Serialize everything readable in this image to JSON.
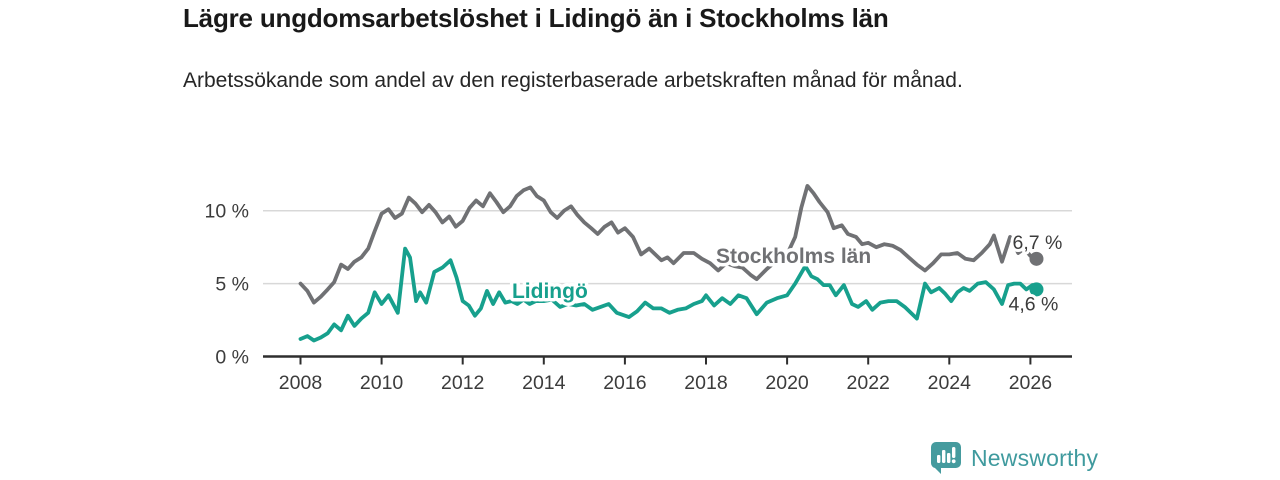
{
  "header": {
    "title": "Lägre ungdomsarbetslöshet i Lidingö än i Stockholms län",
    "subtitle": "Arbetssökande som andel av den registerbaserade arbetskraften månad för månad."
  },
  "footer": {
    "brand": "Newsworthy",
    "logo_icon": "newsworthy-speech-bubble-bar-chart-icon"
  },
  "colors": {
    "stockholm_line": "#707174",
    "lidingo_line": "#17a08d",
    "gridline": "#d8d8d8",
    "axis": "#2e2e2e",
    "tick_label": "#3c3c3c",
    "value_label": "#3c3c3c",
    "brand_teal": "#459b9e"
  },
  "chart_data": {
    "type": "line",
    "title": "Lägre ungdomsarbetslöshet i Lidingö än i Stockholms län",
    "xlabel": "",
    "ylabel": "",
    "grid": "horizontal",
    "legend_position": "inline-labels",
    "xlim": [
      2007.1,
      2027.05
    ],
    "ylim": [
      0,
      12.3
    ],
    "x_ticks": [
      2008,
      2010,
      2012,
      2014,
      2016,
      2018,
      2020,
      2022,
      2024,
      2026
    ],
    "y_ticks": [
      {
        "value": 0,
        "label": "0 %"
      },
      {
        "value": 5,
        "label": "5 %"
      },
      {
        "value": 10,
        "label": "10 %"
      }
    ],
    "series": [
      {
        "name": "Stockholms län",
        "color": "#707174",
        "end_label": "6,7 %",
        "end_value": 6.7,
        "end_label_side": "above",
        "label_pos": {
          "x": 2020.16,
          "y": 6.88
        },
        "points": [
          [
            2008.0,
            5.0
          ],
          [
            2008.17,
            4.5
          ],
          [
            2008.33,
            3.7
          ],
          [
            2008.5,
            4.1
          ],
          [
            2008.67,
            4.6
          ],
          [
            2008.83,
            5.1
          ],
          [
            2009.0,
            6.3
          ],
          [
            2009.17,
            6.0
          ],
          [
            2009.33,
            6.5
          ],
          [
            2009.5,
            6.8
          ],
          [
            2009.67,
            7.4
          ],
          [
            2009.83,
            8.6
          ],
          [
            2010.0,
            9.8
          ],
          [
            2010.17,
            10.1
          ],
          [
            2010.33,
            9.5
          ],
          [
            2010.5,
            9.8
          ],
          [
            2010.67,
            10.9
          ],
          [
            2010.83,
            10.5
          ],
          [
            2011.0,
            9.9
          ],
          [
            2011.17,
            10.4
          ],
          [
            2011.33,
            9.9
          ],
          [
            2011.5,
            9.2
          ],
          [
            2011.67,
            9.6
          ],
          [
            2011.83,
            8.9
          ],
          [
            2012.0,
            9.3
          ],
          [
            2012.17,
            10.2
          ],
          [
            2012.33,
            10.7
          ],
          [
            2012.5,
            10.3
          ],
          [
            2012.67,
            11.2
          ],
          [
            2012.83,
            10.6
          ],
          [
            2013.0,
            9.9
          ],
          [
            2013.17,
            10.3
          ],
          [
            2013.33,
            11.0
          ],
          [
            2013.5,
            11.4
          ],
          [
            2013.67,
            11.6
          ],
          [
            2013.83,
            11.0
          ],
          [
            2014.0,
            10.7
          ],
          [
            2014.17,
            9.9
          ],
          [
            2014.33,
            9.5
          ],
          [
            2014.5,
            10.0
          ],
          [
            2014.67,
            10.3
          ],
          [
            2014.83,
            9.7
          ],
          [
            2015.0,
            9.2
          ],
          [
            2015.17,
            8.8
          ],
          [
            2015.33,
            8.4
          ],
          [
            2015.5,
            8.9
          ],
          [
            2015.67,
            9.2
          ],
          [
            2015.83,
            8.5
          ],
          [
            2016.0,
            8.8
          ],
          [
            2016.2,
            8.2
          ],
          [
            2016.4,
            7.0
          ],
          [
            2016.6,
            7.4
          ],
          [
            2016.9,
            6.6
          ],
          [
            2017.05,
            6.8
          ],
          [
            2017.2,
            6.4
          ],
          [
            2017.45,
            7.1
          ],
          [
            2017.7,
            7.1
          ],
          [
            2017.9,
            6.7
          ],
          [
            2018.1,
            6.4
          ],
          [
            2018.3,
            5.9
          ],
          [
            2018.5,
            6.4
          ],
          [
            2018.7,
            6.2
          ],
          [
            2018.9,
            6.1
          ],
          [
            2019.1,
            5.6
          ],
          [
            2019.25,
            5.3
          ],
          [
            2019.5,
            6.0
          ],
          [
            2019.75,
            6.6
          ],
          [
            2020.0,
            7.0
          ],
          [
            2020.2,
            8.2
          ],
          [
            2020.35,
            10.2
          ],
          [
            2020.5,
            11.7
          ],
          [
            2020.65,
            11.2
          ],
          [
            2020.8,
            10.6
          ],
          [
            2021.0,
            9.9
          ],
          [
            2021.15,
            8.8
          ],
          [
            2021.35,
            9.0
          ],
          [
            2021.5,
            8.4
          ],
          [
            2021.7,
            8.2
          ],
          [
            2021.85,
            7.7
          ],
          [
            2022.0,
            7.8
          ],
          [
            2022.2,
            7.5
          ],
          [
            2022.4,
            7.7
          ],
          [
            2022.6,
            7.6
          ],
          [
            2022.8,
            7.3
          ],
          [
            2023.0,
            6.8
          ],
          [
            2023.2,
            6.3
          ],
          [
            2023.4,
            5.9
          ],
          [
            2023.6,
            6.4
          ],
          [
            2023.8,
            7.0
          ],
          [
            2024.0,
            7.0
          ],
          [
            2024.2,
            7.1
          ],
          [
            2024.4,
            6.7
          ],
          [
            2024.6,
            6.6
          ],
          [
            2024.8,
            7.1
          ],
          [
            2025.0,
            7.7
          ],
          [
            2025.1,
            8.3
          ],
          [
            2025.3,
            6.5
          ],
          [
            2025.5,
            8.2
          ],
          [
            2025.7,
            7.1
          ],
          [
            2025.85,
            7.4
          ],
          [
            2026.0,
            6.9
          ],
          [
            2026.15,
            6.7
          ]
        ]
      },
      {
        "name": "Lidingö",
        "color": "#17a08d",
        "end_label": "4,6 %",
        "end_value": 4.6,
        "end_label_side": "below",
        "label_pos": {
          "x": 2014.15,
          "y": 4.49
        },
        "points": [
          [
            2008.0,
            1.2
          ],
          [
            2008.17,
            1.4
          ],
          [
            2008.33,
            1.1
          ],
          [
            2008.5,
            1.3
          ],
          [
            2008.67,
            1.6
          ],
          [
            2008.83,
            2.2
          ],
          [
            2009.0,
            1.8
          ],
          [
            2009.17,
            2.8
          ],
          [
            2009.33,
            2.1
          ],
          [
            2009.5,
            2.6
          ],
          [
            2009.67,
            3.0
          ],
          [
            2009.83,
            4.4
          ],
          [
            2010.0,
            3.6
          ],
          [
            2010.17,
            4.2
          ],
          [
            2010.4,
            3.0
          ],
          [
            2010.58,
            7.4
          ],
          [
            2010.7,
            6.8
          ],
          [
            2010.85,
            3.8
          ],
          [
            2010.95,
            4.4
          ],
          [
            2011.1,
            3.7
          ],
          [
            2011.3,
            5.8
          ],
          [
            2011.5,
            6.1
          ],
          [
            2011.7,
            6.6
          ],
          [
            2011.85,
            5.4
          ],
          [
            2012.0,
            3.8
          ],
          [
            2012.15,
            3.5
          ],
          [
            2012.3,
            2.8
          ],
          [
            2012.45,
            3.3
          ],
          [
            2012.6,
            4.5
          ],
          [
            2012.75,
            3.6
          ],
          [
            2012.9,
            4.4
          ],
          [
            2013.05,
            3.7
          ],
          [
            2013.2,
            3.8
          ],
          [
            2013.35,
            3.6
          ],
          [
            2013.5,
            3.9
          ],
          [
            2013.65,
            3.6
          ],
          [
            2013.8,
            3.8
          ],
          [
            2014.0,
            3.8
          ],
          [
            2014.2,
            3.9
          ],
          [
            2014.4,
            3.4
          ],
          [
            2014.6,
            3.6
          ],
          [
            2014.8,
            3.5
          ],
          [
            2015.0,
            3.6
          ],
          [
            2015.2,
            3.2
          ],
          [
            2015.4,
            3.4
          ],
          [
            2015.6,
            3.6
          ],
          [
            2015.8,
            3.0
          ],
          [
            2016.1,
            2.7
          ],
          [
            2016.3,
            3.1
          ],
          [
            2016.5,
            3.7
          ],
          [
            2016.7,
            3.3
          ],
          [
            2016.9,
            3.3
          ],
          [
            2017.1,
            3.0
          ],
          [
            2017.3,
            3.2
          ],
          [
            2017.5,
            3.3
          ],
          [
            2017.7,
            3.6
          ],
          [
            2017.9,
            3.8
          ],
          [
            2018.0,
            4.2
          ],
          [
            2018.2,
            3.5
          ],
          [
            2018.4,
            4.0
          ],
          [
            2018.6,
            3.6
          ],
          [
            2018.8,
            4.2
          ],
          [
            2019.0,
            4.0
          ],
          [
            2019.25,
            2.9
          ],
          [
            2019.5,
            3.7
          ],
          [
            2019.75,
            4.0
          ],
          [
            2020.0,
            4.2
          ],
          [
            2020.2,
            5.0
          ],
          [
            2020.45,
            6.2
          ],
          [
            2020.6,
            5.5
          ],
          [
            2020.75,
            5.3
          ],
          [
            2020.9,
            4.9
          ],
          [
            2021.05,
            4.9
          ],
          [
            2021.2,
            4.2
          ],
          [
            2021.4,
            4.9
          ],
          [
            2021.6,
            3.6
          ],
          [
            2021.75,
            3.4
          ],
          [
            2021.95,
            3.8
          ],
          [
            2022.1,
            3.2
          ],
          [
            2022.3,
            3.7
          ],
          [
            2022.5,
            3.8
          ],
          [
            2022.7,
            3.8
          ],
          [
            2022.9,
            3.4
          ],
          [
            2023.05,
            3.0
          ],
          [
            2023.2,
            2.6
          ],
          [
            2023.4,
            5.0
          ],
          [
            2023.55,
            4.4
          ],
          [
            2023.75,
            4.7
          ],
          [
            2023.9,
            4.3
          ],
          [
            2024.05,
            3.8
          ],
          [
            2024.2,
            4.4
          ],
          [
            2024.35,
            4.7
          ],
          [
            2024.5,
            4.5
          ],
          [
            2024.7,
            5.0
          ],
          [
            2024.9,
            5.1
          ],
          [
            2025.1,
            4.6
          ],
          [
            2025.3,
            3.6
          ],
          [
            2025.45,
            4.9
          ],
          [
            2025.6,
            5.0
          ],
          [
            2025.75,
            5.0
          ],
          [
            2025.9,
            4.6
          ],
          [
            2026.05,
            4.9
          ],
          [
            2026.15,
            4.6
          ]
        ]
      }
    ]
  }
}
